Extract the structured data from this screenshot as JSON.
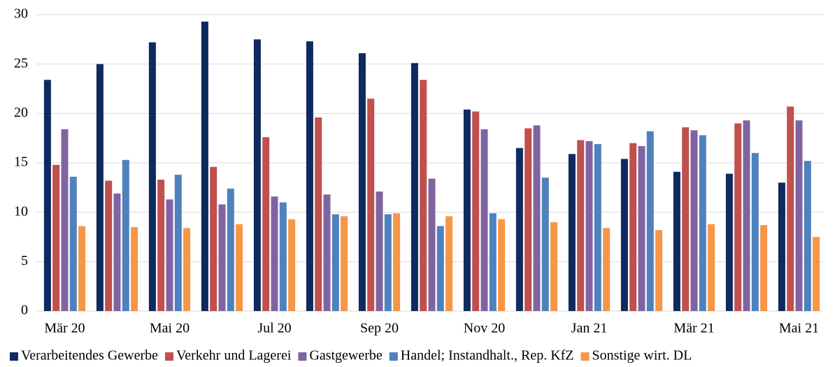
{
  "chart_data": {
    "type": "bar",
    "categories": [
      "Mär 20",
      null,
      "Mai 20",
      null,
      "Jul 20",
      null,
      "Sep 20",
      null,
      "Nov 20",
      null,
      "Jan 21",
      null,
      "Mär 21",
      null,
      "Mai 21"
    ],
    "series": [
      {
        "name": "Verarbeitendes Gewerbe",
        "color": "#0e2a5e",
        "values": [
          23.4,
          25.0,
          27.2,
          29.3,
          27.5,
          27.3,
          26.1,
          25.1,
          20.4,
          16.5,
          15.9,
          15.4,
          14.1,
          13.9,
          13.0
        ]
      },
      {
        "name": "Verkehr und Lagerei",
        "color": "#c0504d",
        "values": [
          14.8,
          13.2,
          13.3,
          14.6,
          17.6,
          19.6,
          21.5,
          23.4,
          20.2,
          18.5,
          17.3,
          17.0,
          18.6,
          19.0,
          20.7
        ]
      },
      {
        "name": "Gastgewerbe",
        "color": "#8064a2",
        "values": [
          18.4,
          11.9,
          11.3,
          10.8,
          11.6,
          11.8,
          12.1,
          13.4,
          18.4,
          18.8,
          17.2,
          16.7,
          18.3,
          19.3,
          19.3
        ]
      },
      {
        "name": "Handel; Instandhalt., Rep. KfZ",
        "color": "#4f81bd",
        "values": [
          13.6,
          15.3,
          13.8,
          12.4,
          11.0,
          9.8,
          9.8,
          8.6,
          9.9,
          13.5,
          16.9,
          18.2,
          17.8,
          16.0,
          15.2
        ]
      },
      {
        "name": "Sonstige wirt. DL",
        "color": "#f79646",
        "values": [
          8.6,
          8.5,
          8.4,
          8.8,
          9.3,
          9.6,
          9.9,
          9.6,
          9.3,
          9.0,
          8.4,
          8.2,
          8.8,
          8.7,
          7.5
        ]
      }
    ],
    "ylim": [
      0,
      30
    ],
    "yticks": [
      0,
      5,
      10,
      15,
      20,
      25,
      30
    ],
    "grid": true,
    "legend": "bottom"
  }
}
